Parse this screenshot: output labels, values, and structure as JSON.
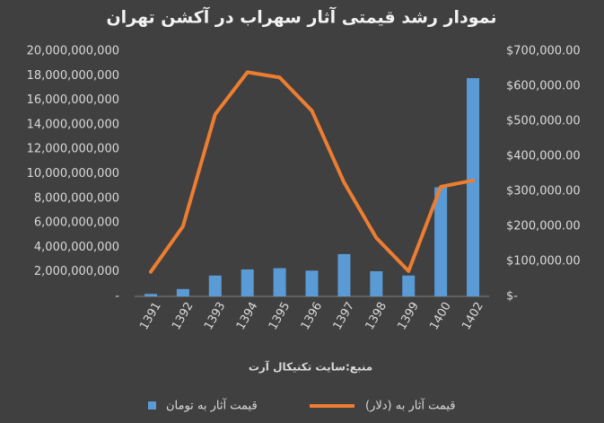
{
  "chart_data": {
    "type": "bar",
    "title": "نمودار رشد قیمتی آثار سهراب در آکشن تهران",
    "x_label": "منبع:سایت تکنیکال آرت",
    "categories": [
      "1391",
      "1392",
      "1393",
      "1394",
      "1395",
      "1396",
      "1397",
      "1398",
      "1399",
      "1400",
      "1402"
    ],
    "series": [
      {
        "name": "قیمت آثار  به تومان",
        "type": "bar",
        "color": "#5b9bd5",
        "values": [
          200000000,
          600000000,
          1700000000,
          2200000000,
          2300000000,
          2100000000,
          3450000000,
          2050000000,
          1700000000,
          8900000000,
          17800000000
        ]
      },
      {
        "name": "قیمت آثار  به (دلار)",
        "type": "line",
        "axis": "y2",
        "color": "#ed7d31",
        "values": [
          70000,
          200000,
          520000,
          640000,
          625000,
          530000,
          325000,
          167000,
          72000,
          313000,
          331000
        ]
      }
    ],
    "ylim": [
      0,
      20000000000
    ],
    "yticks": [
      {
        "value": 0,
        "label": "-"
      },
      {
        "value": 2000000000,
        "label": "2,000,000,000"
      },
      {
        "value": 4000000000,
        "label": "4,000,000,000"
      },
      {
        "value": 6000000000,
        "label": "6,000,000,000"
      },
      {
        "value": 8000000000,
        "label": "8,000,000,000"
      },
      {
        "value": 10000000000,
        "label": "10,000,000,000"
      },
      {
        "value": 12000000000,
        "label": "12,000,000,000"
      },
      {
        "value": 14000000000,
        "label": "14,000,000,000"
      },
      {
        "value": 16000000000,
        "label": "16,000,000,000"
      },
      {
        "value": 18000000000,
        "label": "18,000,000,000"
      },
      {
        "value": 20000000000,
        "label": "20,000,000,000"
      }
    ],
    "y2lim": [
      0,
      700000
    ],
    "y2ticks": [
      {
        "value": 0,
        "label": "$-"
      },
      {
        "value": 100000,
        "label": "$100,000.00"
      },
      {
        "value": 200000,
        "label": "$200,000.00"
      },
      {
        "value": 300000,
        "label": "$300,000.00"
      },
      {
        "value": 400000,
        "label": "$400,000.00"
      },
      {
        "value": 500000,
        "label": "$500,000.00"
      },
      {
        "value": 600000,
        "label": "$600,000.00"
      },
      {
        "value": 700000,
        "label": "$700,000.00"
      }
    ],
    "grid": false
  }
}
